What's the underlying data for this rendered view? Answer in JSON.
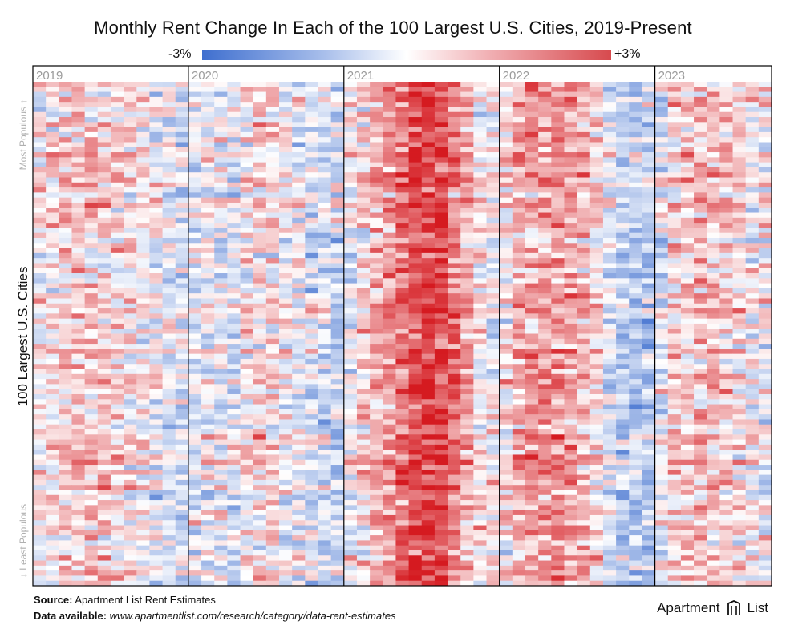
{
  "title": "Monthly Rent Change In Each of the 100 Largest U.S. Cities, 2019-Present",
  "legend": {
    "min_label": "-3%",
    "max_label": "+3%"
  },
  "y_axis": {
    "label": "100 Largest U.S. Cities",
    "top_label": "Most Populous",
    "bottom_label": "Least Populous",
    "arrow_up": "↑",
    "arrow_down": "↓"
  },
  "footer": {
    "source_label": "Source:",
    "source_text": "Apartment List Rent Estimates",
    "data_label": "Data available:",
    "data_url": "www.apartmentlist.com/research/category/data-rent-estimates"
  },
  "brand": {
    "name_a": "Apartment",
    "name_b": "List"
  },
  "colors": {
    "negative": "#3f6fcf",
    "neutral": "#ffffff",
    "positive": "#d51a20",
    "grid": "#000000",
    "year_label": "#9b9b9b"
  },
  "chart_data": {
    "type": "heatmap",
    "title": "Monthly Rent Change In Each of the 100 Largest U.S. Cities, 2019-Present",
    "ylabel": "100 Largest U.S. Cities",
    "color_range": [
      -3,
      3
    ],
    "color_unit": "%",
    "years": [
      "2019",
      "2020",
      "2021",
      "2022",
      "2023"
    ],
    "months_per_year": 12,
    "rows": 100,
    "columns": 57,
    "avg_change_by_month": [
      0.1,
      0.3,
      0.5,
      0.6,
      0.6,
      0.5,
      0.4,
      0.3,
      0.1,
      -0.2,
      -0.3,
      -0.3,
      -0.3,
      0.0,
      -0.2,
      -0.3,
      0.2,
      0.4,
      0.3,
      0.0,
      -0.2,
      -0.5,
      -0.6,
      -0.6,
      -0.1,
      0.4,
      0.9,
      1.2,
      1.8,
      2.4,
      2.4,
      2.2,
      1.6,
      0.9,
      0.2,
      0.1,
      0.3,
      0.9,
      1.1,
      1.1,
      1.2,
      1.1,
      0.8,
      0.4,
      -0.4,
      -0.8,
      -0.9,
      -0.9,
      -0.3,
      0.4,
      0.6,
      0.7,
      0.6,
      0.5,
      0.3,
      0.1,
      0.0
    ],
    "city_spread": 0.9
  }
}
